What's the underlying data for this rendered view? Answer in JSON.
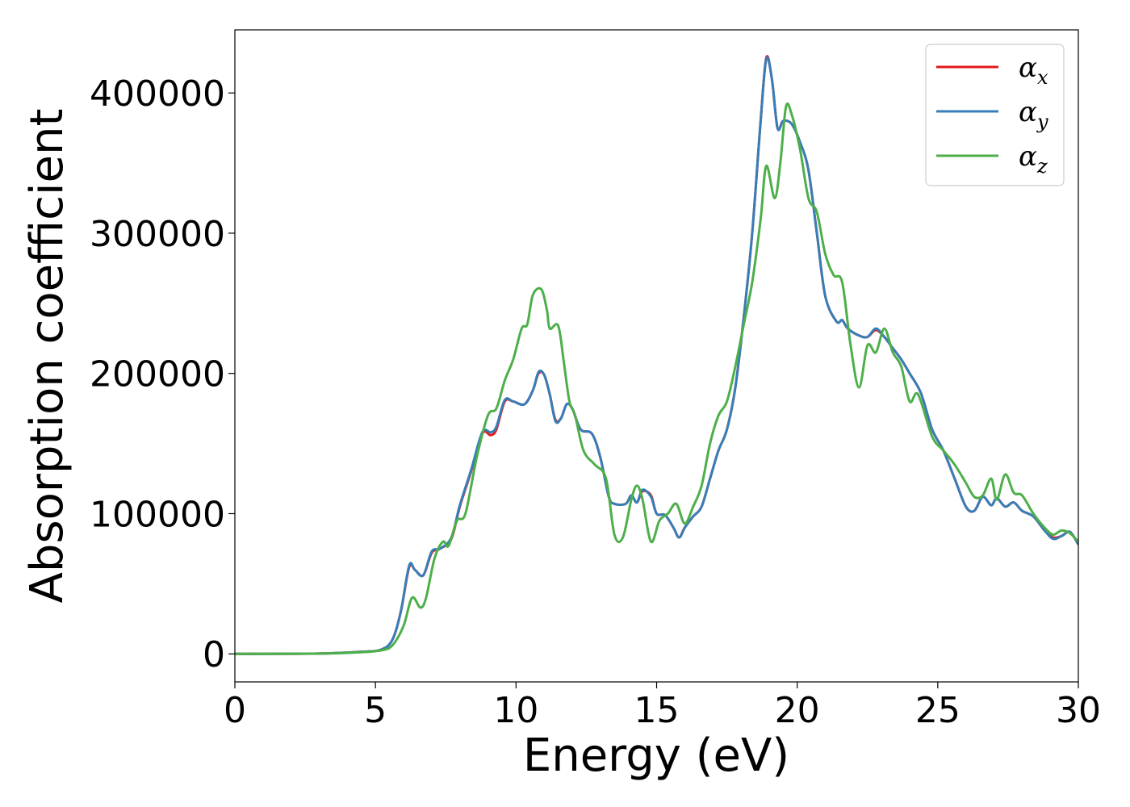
{
  "chart_data": {
    "type": "line",
    "xlabel": "Energy (eV)",
    "ylabel": "Absorption coefficient",
    "xlim": [
      0,
      30
    ],
    "ylim": [
      -20000,
      445000
    ],
    "xticks": [
      0,
      5,
      10,
      15,
      20,
      25,
      30
    ],
    "xtick_labels": [
      "0",
      "5",
      "10",
      "15",
      "20",
      "25",
      "30"
    ],
    "yticks": [
      0,
      100000,
      200000,
      300000,
      400000
    ],
    "ytick_labels": [
      "0",
      "100000",
      "200000",
      "300000",
      "400000"
    ],
    "grid": false,
    "legend_position": "top-right",
    "series": [
      {
        "name": "αx",
        "symbol": "α",
        "subscript": "x",
        "color": "#e41a1c",
        "points": [
          [
            0,
            0
          ],
          [
            3,
            200
          ],
          [
            4.5,
            1500
          ],
          [
            5.2,
            3000
          ],
          [
            5.6,
            10000
          ],
          [
            5.9,
            30000
          ],
          [
            6.2,
            62000
          ],
          [
            6.4,
            60000
          ],
          [
            6.7,
            56000
          ],
          [
            7.0,
            72000
          ],
          [
            7.3,
            75000
          ],
          [
            7.7,
            82000
          ],
          [
            8.0,
            105000
          ],
          [
            8.4,
            130000
          ],
          [
            8.8,
            157000
          ],
          [
            9.1,
            156000
          ],
          [
            9.3,
            160000
          ],
          [
            9.6,
            180000
          ],
          [
            9.9,
            180000
          ],
          [
            10.3,
            178000
          ],
          [
            10.6,
            188000
          ],
          [
            10.8,
            200000
          ],
          [
            11.0,
            199000
          ],
          [
            11.2,
            185000
          ],
          [
            11.4,
            167000
          ],
          [
            11.6,
            168000
          ],
          [
            11.8,
            178000
          ],
          [
            12.0,
            175000
          ],
          [
            12.3,
            160000
          ],
          [
            12.7,
            157000
          ],
          [
            13.0,
            140000
          ],
          [
            13.3,
            112000
          ],
          [
            13.5,
            107000
          ],
          [
            13.9,
            107000
          ],
          [
            14.1,
            113000
          ],
          [
            14.3,
            108000
          ],
          [
            14.5,
            116000
          ],
          [
            14.8,
            113000
          ],
          [
            15.0,
            100000
          ],
          [
            15.3,
            99000
          ],
          [
            15.6,
            90000
          ],
          [
            15.8,
            83000
          ],
          [
            16.0,
            90000
          ],
          [
            16.3,
            98000
          ],
          [
            16.6,
            105000
          ],
          [
            16.9,
            125000
          ],
          [
            17.2,
            145000
          ],
          [
            17.5,
            160000
          ],
          [
            17.8,
            190000
          ],
          [
            18.1,
            240000
          ],
          [
            18.4,
            300000
          ],
          [
            18.7,
            380000
          ],
          [
            18.9,
            425000
          ],
          [
            19.1,
            410000
          ],
          [
            19.3,
            375000
          ],
          [
            19.5,
            380000
          ],
          [
            19.8,
            378000
          ],
          [
            20.1,
            365000
          ],
          [
            20.4,
            345000
          ],
          [
            20.7,
            300000
          ],
          [
            21.0,
            255000
          ],
          [
            21.4,
            237000
          ],
          [
            21.6,
            238000
          ],
          [
            21.8,
            232000
          ],
          [
            22.2,
            227000
          ],
          [
            22.5,
            226000
          ],
          [
            22.8,
            231000
          ],
          [
            23.1,
            226000
          ],
          [
            23.4,
            218000
          ],
          [
            23.7,
            210000
          ],
          [
            24.0,
            200000
          ],
          [
            24.4,
            186000
          ],
          [
            24.8,
            160000
          ],
          [
            25.2,
            145000
          ],
          [
            25.6,
            125000
          ],
          [
            26.0,
            105000
          ],
          [
            26.3,
            102000
          ],
          [
            26.6,
            112000
          ],
          [
            26.9,
            106000
          ],
          [
            27.1,
            111000
          ],
          [
            27.4,
            105000
          ],
          [
            27.7,
            108000
          ],
          [
            28.0,
            102000
          ],
          [
            28.4,
            98000
          ],
          [
            28.8,
            88000
          ],
          [
            29.1,
            83000
          ],
          [
            29.4,
            84000
          ],
          [
            29.7,
            87000
          ],
          [
            30,
            78000
          ]
        ]
      },
      {
        "name": "αy",
        "symbol": "α",
        "subscript": "y",
        "color": "#377eb8",
        "points": [
          [
            0,
            0
          ],
          [
            3,
            200
          ],
          [
            4.5,
            1500
          ],
          [
            5.2,
            3000
          ],
          [
            5.6,
            10000
          ],
          [
            5.9,
            30000
          ],
          [
            6.2,
            63000
          ],
          [
            6.4,
            60000
          ],
          [
            6.7,
            56000
          ],
          [
            7.0,
            73000
          ],
          [
            7.3,
            75000
          ],
          [
            7.7,
            83000
          ],
          [
            8.0,
            106000
          ],
          [
            8.4,
            131000
          ],
          [
            8.8,
            158000
          ],
          [
            9.1,
            158000
          ],
          [
            9.3,
            162000
          ],
          [
            9.6,
            181000
          ],
          [
            9.9,
            180000
          ],
          [
            10.3,
            178000
          ],
          [
            10.6,
            188000
          ],
          [
            10.8,
            201000
          ],
          [
            11.0,
            199000
          ],
          [
            11.2,
            185000
          ],
          [
            11.4,
            166000
          ],
          [
            11.6,
            168000
          ],
          [
            11.8,
            178000
          ],
          [
            12.0,
            175000
          ],
          [
            12.3,
            160000
          ],
          [
            12.7,
            157000
          ],
          [
            13.0,
            140000
          ],
          [
            13.3,
            112000
          ],
          [
            13.5,
            107000
          ],
          [
            13.9,
            107000
          ],
          [
            14.1,
            113000
          ],
          [
            14.3,
            108000
          ],
          [
            14.5,
            117000
          ],
          [
            14.8,
            112000
          ],
          [
            15.0,
            100000
          ],
          [
            15.3,
            99000
          ],
          [
            15.6,
            90000
          ],
          [
            15.8,
            83000
          ],
          [
            16.0,
            90000
          ],
          [
            16.3,
            98000
          ],
          [
            16.6,
            105000
          ],
          [
            16.9,
            125000
          ],
          [
            17.2,
            145000
          ],
          [
            17.5,
            160000
          ],
          [
            17.8,
            190000
          ],
          [
            18.1,
            240000
          ],
          [
            18.4,
            300000
          ],
          [
            18.7,
            380000
          ],
          [
            18.9,
            424000
          ],
          [
            19.1,
            410000
          ],
          [
            19.3,
            375000
          ],
          [
            19.5,
            380000
          ],
          [
            19.8,
            378000
          ],
          [
            20.1,
            365000
          ],
          [
            20.4,
            345000
          ],
          [
            20.7,
            300000
          ],
          [
            21.0,
            255000
          ],
          [
            21.4,
            237000
          ],
          [
            21.6,
            238000
          ],
          [
            21.8,
            232000
          ],
          [
            22.2,
            227000
          ],
          [
            22.5,
            226000
          ],
          [
            22.8,
            232000
          ],
          [
            23.1,
            226000
          ],
          [
            23.4,
            218000
          ],
          [
            23.7,
            210000
          ],
          [
            24.0,
            200000
          ],
          [
            24.4,
            186000
          ],
          [
            24.8,
            160000
          ],
          [
            25.2,
            145000
          ],
          [
            25.6,
            125000
          ],
          [
            26.0,
            105000
          ],
          [
            26.3,
            102000
          ],
          [
            26.6,
            112000
          ],
          [
            26.9,
            106000
          ],
          [
            27.1,
            111000
          ],
          [
            27.4,
            105000
          ],
          [
            27.7,
            108000
          ],
          [
            28.0,
            102000
          ],
          [
            28.4,
            98000
          ],
          [
            28.8,
            88000
          ],
          [
            29.1,
            82000
          ],
          [
            29.4,
            84000
          ],
          [
            29.7,
            87000
          ],
          [
            30,
            78000
          ]
        ]
      },
      {
        "name": "αz",
        "symbol": "α",
        "subscript": "z",
        "color": "#4daf4a",
        "points": [
          [
            0,
            0
          ],
          [
            3,
            200
          ],
          [
            4.5,
            1200
          ],
          [
            5.2,
            2500
          ],
          [
            5.6,
            6000
          ],
          [
            6.0,
            20000
          ],
          [
            6.3,
            40000
          ],
          [
            6.6,
            33000
          ],
          [
            6.8,
            40000
          ],
          [
            7.1,
            68000
          ],
          [
            7.4,
            80000
          ],
          [
            7.6,
            77000
          ],
          [
            7.9,
            95000
          ],
          [
            8.2,
            100000
          ],
          [
            8.6,
            140000
          ],
          [
            9.0,
            170000
          ],
          [
            9.3,
            175000
          ],
          [
            9.6,
            195000
          ],
          [
            9.9,
            210000
          ],
          [
            10.2,
            232000
          ],
          [
            10.4,
            235000
          ],
          [
            10.6,
            256000
          ],
          [
            10.9,
            260000
          ],
          [
            11.1,
            245000
          ],
          [
            11.2,
            232000
          ],
          [
            11.5,
            234000
          ],
          [
            11.7,
            208000
          ],
          [
            11.9,
            180000
          ],
          [
            12.1,
            170000
          ],
          [
            12.4,
            145000
          ],
          [
            12.8,
            135000
          ],
          [
            13.2,
            125000
          ],
          [
            13.5,
            85000
          ],
          [
            13.8,
            83000
          ],
          [
            14.1,
            110000
          ],
          [
            14.3,
            120000
          ],
          [
            14.5,
            110000
          ],
          [
            14.8,
            80000
          ],
          [
            15.1,
            95000
          ],
          [
            15.4,
            100000
          ],
          [
            15.7,
            107000
          ],
          [
            16.0,
            93000
          ],
          [
            16.3,
            105000
          ],
          [
            16.6,
            120000
          ],
          [
            16.9,
            150000
          ],
          [
            17.2,
            170000
          ],
          [
            17.5,
            180000
          ],
          [
            17.8,
            205000
          ],
          [
            18.1,
            235000
          ],
          [
            18.4,
            265000
          ],
          [
            18.7,
            310000
          ],
          [
            18.9,
            348000
          ],
          [
            19.2,
            325000
          ],
          [
            19.4,
            350000
          ],
          [
            19.6,
            390000
          ],
          [
            19.8,
            385000
          ],
          [
            20.1,
            360000
          ],
          [
            20.4,
            325000
          ],
          [
            20.7,
            315000
          ],
          [
            21.0,
            285000
          ],
          [
            21.3,
            270000
          ],
          [
            21.6,
            265000
          ],
          [
            21.9,
            220000
          ],
          [
            22.2,
            190000
          ],
          [
            22.5,
            220000
          ],
          [
            22.8,
            215000
          ],
          [
            23.1,
            232000
          ],
          [
            23.4,
            215000
          ],
          [
            23.7,
            205000
          ],
          [
            24.0,
            180000
          ],
          [
            24.3,
            185000
          ],
          [
            24.8,
            155000
          ],
          [
            25.2,
            145000
          ],
          [
            25.6,
            135000
          ],
          [
            26.0,
            122000
          ],
          [
            26.3,
            112000
          ],
          [
            26.6,
            113000
          ],
          [
            26.9,
            125000
          ],
          [
            27.1,
            110000
          ],
          [
            27.4,
            128000
          ],
          [
            27.7,
            115000
          ],
          [
            28.0,
            113000
          ],
          [
            28.4,
            100000
          ],
          [
            28.8,
            90000
          ],
          [
            29.1,
            85000
          ],
          [
            29.4,
            88000
          ],
          [
            29.7,
            86000
          ],
          [
            30,
            80000
          ]
        ]
      }
    ]
  }
}
